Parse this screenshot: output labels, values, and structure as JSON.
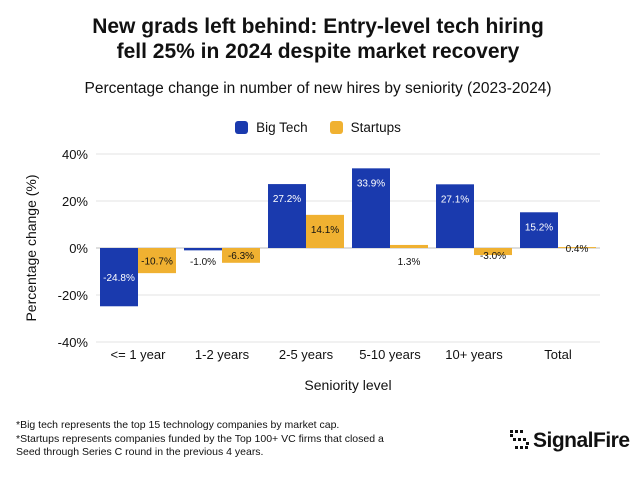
{
  "title": {
    "line1": "New grads left behind: Entry-level tech hiring",
    "line2": "fell 25% in 2024 despite market recovery"
  },
  "subtitle": "Percentage change in number of new hires by seniority (2023-2024)",
  "colors": {
    "big_tech": "#1a3aae",
    "startups": "#f0b131",
    "grid": "#e3e3e3",
    "zero_line": "#bdbdbd"
  },
  "chart_data": {
    "type": "bar",
    "title": "Percentage change in number of new hires by seniority (2023-2024)",
    "xlabel": "Seniority level",
    "ylabel": "Percentage change (%)",
    "categories": [
      "<= 1 year",
      "1-2 years",
      "2-5 years",
      "5-10 years",
      "10+ years",
      "Total"
    ],
    "ylim": [
      -40,
      40
    ],
    "yticks": [
      40,
      20,
      0,
      -20,
      -40
    ],
    "ytick_labels": [
      "40%",
      "20%",
      "0%",
      "-20%",
      "-40%"
    ],
    "grid": true,
    "legend_position": "top-center",
    "series": [
      {
        "name": "Big Tech",
        "values": [
          -24.8,
          -1.0,
          27.2,
          33.9,
          27.1,
          15.2
        ],
        "labels": [
          "-24.8%",
          "-1.0%",
          "27.2%",
          "33.9%",
          "27.1%",
          "15.2%"
        ]
      },
      {
        "name": "Startups",
        "values": [
          -10.7,
          -6.3,
          14.1,
          1.3,
          -3.0,
          0.4
        ],
        "labels": [
          "-10.7%",
          "-6.3%",
          "14.1%",
          "1.3%",
          "-3.0%",
          "0.4%"
        ]
      }
    ]
  },
  "footnotes": [
    "*Big tech represents the top 15 technology companies by market cap.",
    "*Startups represents companies funded by the Top 100+ VC firms that closed a",
    "Seed through Series C round in the previous 4 years."
  ],
  "logo": {
    "text": "SignalFire",
    "icon": "signalfire-logo-icon"
  }
}
